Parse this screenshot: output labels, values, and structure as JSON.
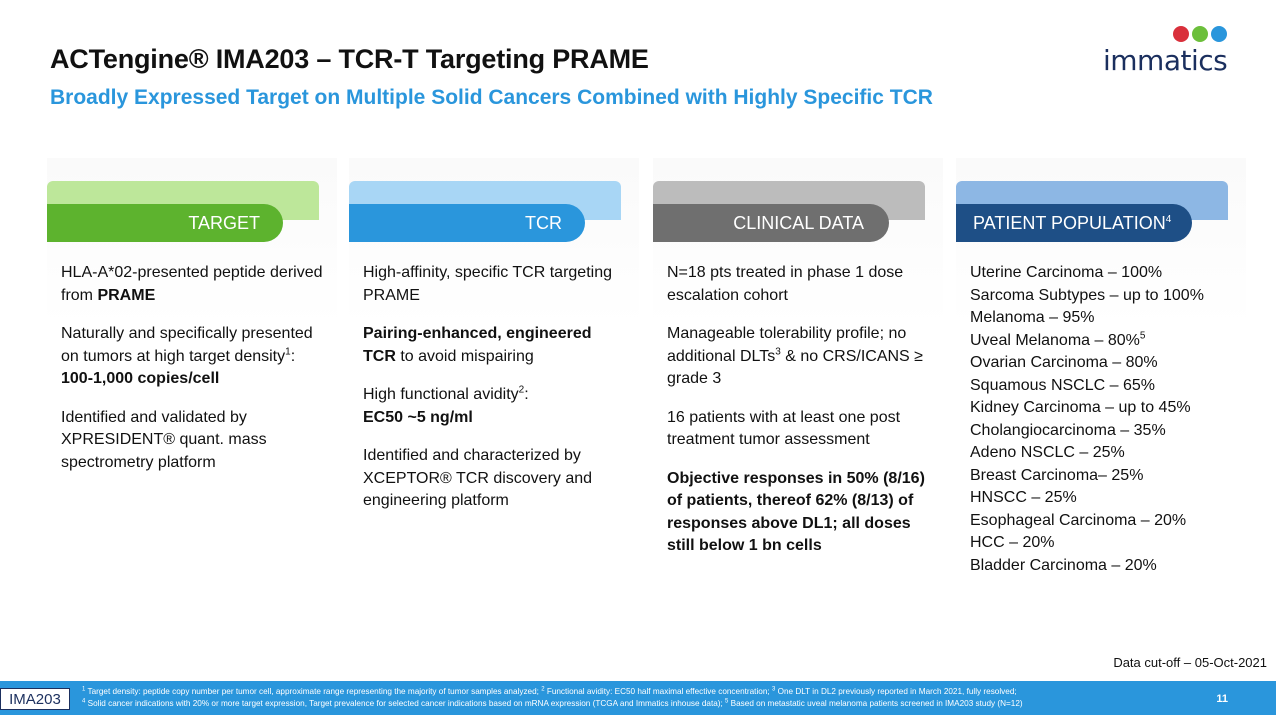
{
  "header": {
    "title": "ACTengine® IMA203 – TCR-T Targeting PRAME",
    "subtitle": "Broadly Expressed Target on Multiple Solid Cancers Combined with Highly Specific TCR"
  },
  "logo": {
    "text": "immatics"
  },
  "colors": {
    "accent_blue": "#2a96dc",
    "target_green": "#5db32e",
    "clinical_gray": "#6f6f6f",
    "population_navy": "#1e4f86"
  },
  "cards": {
    "target": {
      "title": "TARGET",
      "p1_text": "HLA-A*02-presented peptide derived from ",
      "p1_bold": "PRAME",
      "p2_text": "Naturally and specifically presented on tumors at high target density",
      "p2_sup": "1",
      "p2_colon": ":",
      "p2_bold": "100-1,000 copies/cell",
      "p3_text": "Identified and validated by XPRESIDENT® quant. mass spectrometry platform"
    },
    "tcr": {
      "title": "TCR",
      "p1_text": "High-affinity, specific TCR targeting PRAME",
      "p2_bold": "Pairing-enhanced, engineered TCR",
      "p2_text": " to avoid mispairing",
      "p3_text": "High functional avidity",
      "p3_sup": "2",
      "p3_colon": ":",
      "p3_bold": "EC50 ~5 ng/ml",
      "p4_text": "Identified and characterized by XCEPTOR® TCR discovery and engineering platform"
    },
    "clinical": {
      "title": "CLINICAL DATA",
      "p1_text": "N=18 pts treated in phase 1 dose escalation cohort",
      "p2_text_a": "Manageable tolerability profile; no additional DLTs",
      "p2_sup": "3",
      "p2_text_b": " & no CRS/ICANS ≥ grade 3",
      "p3_text": "16 patients with at least one post treatment tumor assessment",
      "p4_bold": "Objective responses in 50% (8/16) of patients, thereof 62% (8/13) of responses above DL1; all doses still below 1 bn cells"
    },
    "population": {
      "title": "PATIENT POPULATION",
      "title_sup": "4",
      "items": [
        "Uterine Carcinoma – 100%",
        "Sarcoma Subtypes – up to 100%",
        "Melanoma – 95%",
        "Uveal Melanoma – 80%",
        "Ovarian Carcinoma – 80%",
        "Squamous NSCLC – 65%",
        "Kidney Carcinoma –  up to 45%",
        "Cholangiocarcinoma – 35%",
        "Adeno NSCLC – 25%",
        "Breast Carcinoma– 25%",
        "HNSCC – 25%",
        "Esophageal Carcinoma – 20%",
        "HCC – 20%",
        "Bladder Carcinoma – 20%"
      ],
      "uveal_sup": "5"
    }
  },
  "data_cutoff": "Data cut-off – 05-Oct-2021",
  "footer": {
    "tag": "IMA203",
    "page_number": "11",
    "note1_sup": "1",
    "note1": " Target density: peptide copy number per tumor cell, approximate range representing the majority of tumor samples analyzed; ",
    "note2_sup": "2",
    "note2": " Functional avidity: EC50 half maximal effective concentration; ",
    "note3_sup": "3",
    "note3": " One DLT in DL2 previously reported in March 2021, fully resolved;",
    "note4_sup": "4",
    "note4": " Solid cancer indications with 20% or more target expression, Target prevalence for selected cancer indications based on mRNA expression (TCGA and Immatics inhouse data); ",
    "note5_sup": "5",
    "note5": " Based on metastatic uveal melanoma patients screened in IMA203 study (N=12)"
  }
}
